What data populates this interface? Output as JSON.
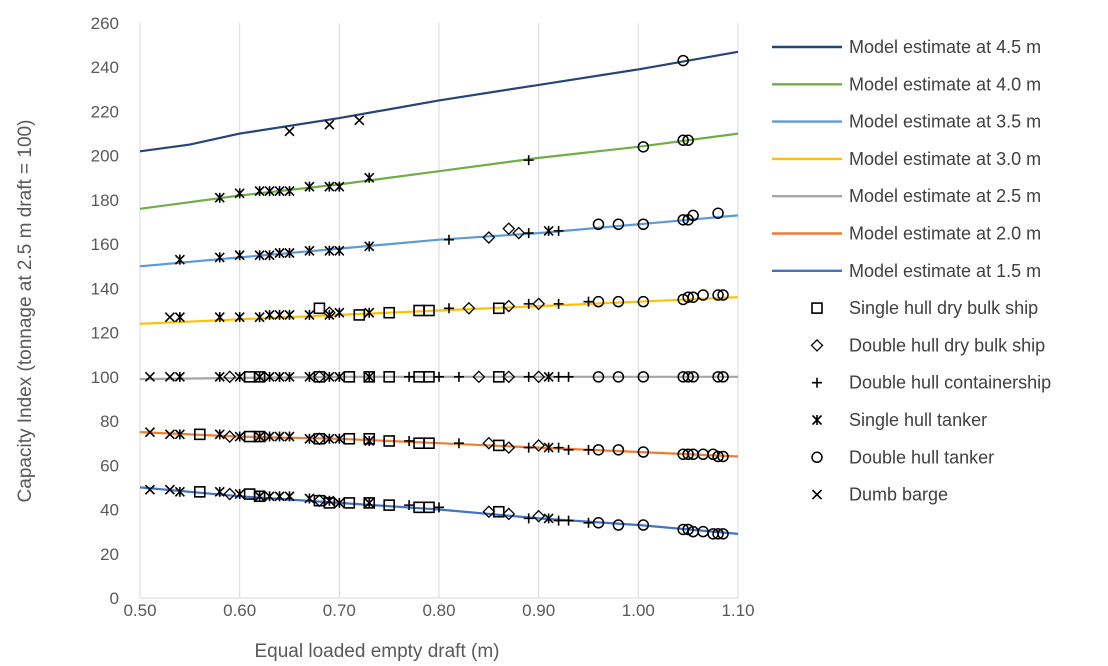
{
  "chart_data": {
    "type": "scatter",
    "title": "",
    "xlabel": "Equal loaded empty draft (m)",
    "ylabel": "Capacity Index (tonnage at 2.5 m draft = 100)",
    "xlim": [
      0.5,
      1.1
    ],
    "ylim": [
      0,
      260
    ],
    "x_ticks": [
      "0.50",
      "0.60",
      "0.70",
      "0.80",
      "0.90",
      "1.00",
      "1.10"
    ],
    "y_ticks": [
      "0",
      "20",
      "40",
      "60",
      "80",
      "100",
      "120",
      "140",
      "160",
      "180",
      "200",
      "220",
      "240",
      "260"
    ],
    "grid": "vertical",
    "legend_position": "right",
    "lines": [
      {
        "name": "Model estimate at 4.5 m",
        "color": "#264478",
        "points": [
          [
            0.5,
            202
          ],
          [
            0.55,
            205
          ],
          [
            0.6,
            210
          ],
          [
            0.7,
            217
          ],
          [
            0.8,
            225
          ],
          [
            0.9,
            232
          ],
          [
            1.0,
            239
          ],
          [
            1.1,
            247
          ]
        ]
      },
      {
        "name": "Model estimate at 4.0 m",
        "color": "#70ad47",
        "points": [
          [
            0.5,
            176
          ],
          [
            0.6,
            182
          ],
          [
            0.7,
            187
          ],
          [
            0.8,
            193
          ],
          [
            0.9,
            199
          ],
          [
            1.0,
            204
          ],
          [
            1.1,
            210
          ]
        ]
      },
      {
        "name": "Model estimate at 3.5 m",
        "color": "#5b9bd5",
        "points": [
          [
            0.5,
            150
          ],
          [
            0.6,
            154
          ],
          [
            0.7,
            158
          ],
          [
            0.8,
            162
          ],
          [
            0.9,
            165
          ],
          [
            1.0,
            169
          ],
          [
            1.1,
            173
          ]
        ]
      },
      {
        "name": "Model estimate at 3.0 m",
        "color": "#ffc000",
        "points": [
          [
            0.5,
            124
          ],
          [
            0.6,
            126
          ],
          [
            0.7,
            128
          ],
          [
            0.8,
            130
          ],
          [
            0.9,
            132
          ],
          [
            1.0,
            134
          ],
          [
            1.1,
            136
          ]
        ]
      },
      {
        "name": "Model estimate at 2.5 m",
        "color": "#a5a5a5",
        "points": [
          [
            0.5,
            99
          ],
          [
            0.7,
            100
          ],
          [
            0.9,
            100
          ],
          [
            1.1,
            100
          ]
        ]
      },
      {
        "name": "Model estimate at 2.0 m",
        "color": "#ed7d31",
        "points": [
          [
            0.5,
            75
          ],
          [
            0.6,
            73
          ],
          [
            0.7,
            72
          ],
          [
            0.8,
            70
          ],
          [
            0.9,
            68
          ],
          [
            1.0,
            66
          ],
          [
            1.1,
            64
          ]
        ]
      },
      {
        "name": "Model estimate at 1.5 m",
        "color": "#4472c4",
        "points": [
          [
            0.5,
            50
          ],
          [
            0.6,
            46
          ],
          [
            0.7,
            43
          ],
          [
            0.8,
            40
          ],
          [
            0.9,
            36
          ],
          [
            1.0,
            33
          ],
          [
            1.1,
            29
          ]
        ]
      }
    ],
    "scatter": [
      {
        "name": "Single hull dry bulk ship",
        "marker": "square",
        "points": [
          [
            0.56,
            48
          ],
          [
            0.56,
            74
          ],
          [
            0.61,
            47
          ],
          [
            0.61,
            73
          ],
          [
            0.61,
            100
          ],
          [
            0.62,
            46
          ],
          [
            0.62,
            73
          ],
          [
            0.62,
            100
          ],
          [
            0.68,
            44
          ],
          [
            0.68,
            72
          ],
          [
            0.68,
            100
          ],
          [
            0.68,
            131
          ],
          [
            0.69,
            43
          ],
          [
            0.71,
            43
          ],
          [
            0.71,
            72
          ],
          [
            0.71,
            100
          ],
          [
            0.72,
            128
          ],
          [
            0.73,
            43
          ],
          [
            0.73,
            72
          ],
          [
            0.73,
            100
          ],
          [
            0.75,
            42
          ],
          [
            0.75,
            71
          ],
          [
            0.75,
            100
          ],
          [
            0.75,
            129
          ],
          [
            0.78,
            41
          ],
          [
            0.78,
            70
          ],
          [
            0.78,
            100
          ],
          [
            0.78,
            130
          ],
          [
            0.79,
            41
          ],
          [
            0.79,
            70
          ],
          [
            0.79,
            100
          ],
          [
            0.79,
            130
          ],
          [
            0.86,
            39
          ],
          [
            0.86,
            69
          ],
          [
            0.86,
            100
          ],
          [
            0.86,
            131
          ]
        ]
      },
      {
        "name": "Double hull dry bulk ship",
        "marker": "diamond",
        "points": [
          [
            0.59,
            47
          ],
          [
            0.59,
            73
          ],
          [
            0.59,
            100
          ],
          [
            0.68,
            44
          ],
          [
            0.68,
            72
          ],
          [
            0.68,
            100
          ],
          [
            0.69,
            129
          ],
          [
            0.83,
            131
          ],
          [
            0.84,
            100
          ],
          [
            0.85,
            39
          ],
          [
            0.85,
            70
          ],
          [
            0.85,
            163
          ],
          [
            0.87,
            38
          ],
          [
            0.87,
            68
          ],
          [
            0.87,
            100
          ],
          [
            0.87,
            132
          ],
          [
            0.87,
            167
          ],
          [
            0.88,
            165
          ],
          [
            0.9,
            37
          ],
          [
            0.9,
            69
          ],
          [
            0.9,
            100
          ],
          [
            0.9,
            133
          ]
        ]
      },
      {
        "name": "Double hull containership",
        "marker": "plus",
        "points": [
          [
            0.77,
            42
          ],
          [
            0.77,
            71
          ],
          [
            0.77,
            100
          ],
          [
            0.8,
            41
          ],
          [
            0.8,
            100
          ],
          [
            0.81,
            131
          ],
          [
            0.81,
            162
          ],
          [
            0.82,
            70
          ],
          [
            0.82,
            100
          ],
          [
            0.89,
            36
          ],
          [
            0.89,
            68
          ],
          [
            0.89,
            100
          ],
          [
            0.89,
            133
          ],
          [
            0.89,
            165
          ],
          [
            0.89,
            198
          ],
          [
            0.92,
            35
          ],
          [
            0.92,
            68
          ],
          [
            0.92,
            100
          ],
          [
            0.92,
            133
          ],
          [
            0.92,
            166
          ],
          [
            0.93,
            35
          ],
          [
            0.93,
            67
          ],
          [
            0.93,
            100
          ],
          [
            0.95,
            34
          ],
          [
            0.95,
            67
          ],
          [
            0.95,
            134
          ]
        ]
      },
      {
        "name": "Single hull tanker",
        "marker": "star",
        "points": [
          [
            0.54,
            48
          ],
          [
            0.54,
            74
          ],
          [
            0.54,
            100
          ],
          [
            0.54,
            127
          ],
          [
            0.54,
            153
          ],
          [
            0.58,
            48
          ],
          [
            0.58,
            74
          ],
          [
            0.58,
            100
          ],
          [
            0.58,
            127
          ],
          [
            0.58,
            154
          ],
          [
            0.58,
            181
          ],
          [
            0.6,
            47
          ],
          [
            0.6,
            73
          ],
          [
            0.6,
            100
          ],
          [
            0.6,
            127
          ],
          [
            0.6,
            155
          ],
          [
            0.6,
            183
          ],
          [
            0.62,
            46
          ],
          [
            0.62,
            73
          ],
          [
            0.62,
            100
          ],
          [
            0.62,
            127
          ],
          [
            0.62,
            155
          ],
          [
            0.62,
            184
          ],
          [
            0.63,
            46
          ],
          [
            0.63,
            73
          ],
          [
            0.63,
            100
          ],
          [
            0.63,
            128
          ],
          [
            0.63,
            155
          ],
          [
            0.63,
            184
          ],
          [
            0.64,
            46
          ],
          [
            0.64,
            73
          ],
          [
            0.64,
            100
          ],
          [
            0.64,
            128
          ],
          [
            0.64,
            156
          ],
          [
            0.64,
            184
          ],
          [
            0.65,
            46
          ],
          [
            0.65,
            73
          ],
          [
            0.65,
            100
          ],
          [
            0.65,
            128
          ],
          [
            0.65,
            156
          ],
          [
            0.65,
            184
          ],
          [
            0.67,
            45
          ],
          [
            0.67,
            72
          ],
          [
            0.67,
            100
          ],
          [
            0.67,
            128
          ],
          [
            0.67,
            157
          ],
          [
            0.67,
            186
          ],
          [
            0.69,
            44
          ],
          [
            0.69,
            72
          ],
          [
            0.69,
            100
          ],
          [
            0.69,
            128
          ],
          [
            0.69,
            157
          ],
          [
            0.69,
            186
          ],
          [
            0.7,
            43
          ],
          [
            0.7,
            72
          ],
          [
            0.7,
            100
          ],
          [
            0.7,
            129
          ],
          [
            0.7,
            157
          ],
          [
            0.7,
            186
          ],
          [
            0.73,
            43
          ],
          [
            0.73,
            71
          ],
          [
            0.73,
            100
          ],
          [
            0.73,
            129
          ],
          [
            0.73,
            159
          ],
          [
            0.73,
            190
          ],
          [
            0.91,
            166
          ],
          [
            0.91,
            100
          ],
          [
            0.91,
            68
          ],
          [
            0.91,
            36
          ]
        ]
      },
      {
        "name": "Double hull tanker",
        "marker": "circle",
        "points": [
          [
            0.96,
            34
          ],
          [
            0.96,
            67
          ],
          [
            0.96,
            100
          ],
          [
            0.96,
            134
          ],
          [
            0.96,
            169
          ],
          [
            0.98,
            33
          ],
          [
            0.98,
            67
          ],
          [
            0.98,
            100
          ],
          [
            0.98,
            134
          ],
          [
            0.98,
            169
          ],
          [
            1.005,
            33
          ],
          [
            1.005,
            66
          ],
          [
            1.005,
            100
          ],
          [
            1.005,
            134
          ],
          [
            1.005,
            169
          ],
          [
            1.005,
            204
          ],
          [
            1.045,
            31
          ],
          [
            1.045,
            65
          ],
          [
            1.045,
            100
          ],
          [
            1.045,
            135
          ],
          [
            1.045,
            171
          ],
          [
            1.045,
            207
          ],
          [
            1.045,
            243
          ],
          [
            1.05,
            31
          ],
          [
            1.05,
            65
          ],
          [
            1.05,
            100
          ],
          [
            1.05,
            136
          ],
          [
            1.05,
            171
          ],
          [
            1.05,
            207
          ],
          [
            1.055,
            30
          ],
          [
            1.055,
            65
          ],
          [
            1.055,
            100
          ],
          [
            1.055,
            136
          ],
          [
            1.055,
            173
          ],
          [
            1.065,
            30
          ],
          [
            1.065,
            65
          ],
          [
            1.065,
            137
          ],
          [
            1.075,
            29
          ],
          [
            1.075,
            65
          ],
          [
            1.08,
            29
          ],
          [
            1.08,
            64
          ],
          [
            1.08,
            100
          ],
          [
            1.08,
            137
          ],
          [
            1.08,
            174
          ],
          [
            1.085,
            29
          ],
          [
            1.085,
            64
          ],
          [
            1.085,
            100
          ],
          [
            1.085,
            137
          ]
        ]
      },
      {
        "name": "Dumb barge",
        "marker": "x",
        "points": [
          [
            0.51,
            49
          ],
          [
            0.51,
            75
          ],
          [
            0.51,
            100
          ],
          [
            0.53,
            49
          ],
          [
            0.53,
            74
          ],
          [
            0.53,
            100
          ],
          [
            0.53,
            127
          ],
          [
            0.65,
            211
          ],
          [
            0.69,
            214
          ],
          [
            0.72,
            216
          ]
        ]
      }
    ]
  }
}
